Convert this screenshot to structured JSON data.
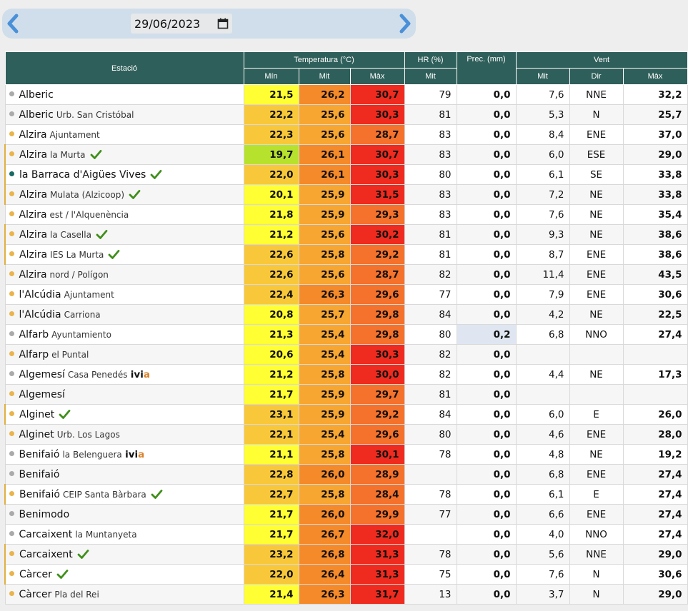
{
  "date": {
    "value": "29/06/2023"
  },
  "colors": {
    "header_bg": "#2f5f5a",
    "dot_orange": "#e9b44c",
    "dot_grey": "#aaaaaa",
    "dot_teal": "#1a6a64",
    "check": "#3f8f1a",
    "datebar": "#cfdeea",
    "arrow": "#4a90d9"
  },
  "icons": {
    "prev": "chevron-left-icon",
    "next": "chevron-right-icon",
    "calendar": "calendar-icon",
    "check": "checkmark-icon"
  },
  "header": {
    "station": "Estació",
    "temperature": "Temperatura (°C)",
    "hr": "HR (%)",
    "prec": "Prec. (mm)",
    "wind": "Vent",
    "min": "Mín",
    "mit": "Mit",
    "max": "Màx",
    "hr_mit": "Mit",
    "wind_mit": "Mit",
    "wind_dir": "Dir",
    "wind_max": "Màx"
  },
  "rows": [
    {
      "name": "Alberic",
      "sub": "",
      "ivia": false,
      "check": false,
      "dot": "grey",
      "tmin": "21,5",
      "tmit": "26,2",
      "tmax": "30,7",
      "hr": "79",
      "prec": "0,0",
      "vmit": "7,6",
      "dir": "NNE",
      "vmax": "32,2",
      "cmin": "#ffff33",
      "cmit": "#f58a2a",
      "cmax": "#ee2b1e"
    },
    {
      "name": "Alberic",
      "sub": "Urb. San Cristóbal",
      "ivia": false,
      "check": false,
      "dot": "grey",
      "tmin": "22,2",
      "tmit": "25,6",
      "tmax": "30,3",
      "hr": "81",
      "prec": "0,0",
      "vmit": "5,3",
      "dir": "N",
      "vmax": "25,7",
      "cmin": "#f8c83a",
      "cmit": "#f7a632",
      "cmax": "#ee2b1e"
    },
    {
      "name": "Alzira",
      "sub": "Ajuntament",
      "ivia": false,
      "check": false,
      "dot": "orange",
      "tmin": "22,3",
      "tmit": "25,6",
      "tmax": "28,7",
      "hr": "83",
      "prec": "0,0",
      "vmit": "8,4",
      "dir": "ENE",
      "vmax": "37,0",
      "cmin": "#f8c83a",
      "cmit": "#f7a632",
      "cmax": "#f4722c"
    },
    {
      "name": "Alzira",
      "sub": "la Murta",
      "ivia": false,
      "check": true,
      "dot": "orange",
      "tmin": "19,7",
      "tmit": "26,1",
      "tmax": "30,7",
      "hr": "83",
      "prec": "0,0",
      "vmit": "6,0",
      "dir": "ESE",
      "vmax": "29,0",
      "cmin": "#b6e22e",
      "cmit": "#f58a2a",
      "cmax": "#ee2b1e"
    },
    {
      "name": "la Barraca d'Aigües Vives",
      "sub": "",
      "ivia": false,
      "check": true,
      "dot": "teal",
      "tmin": "22,0",
      "tmit": "26,1",
      "tmax": "30,3",
      "hr": "80",
      "prec": "0,0",
      "vmit": "6,1",
      "dir": "SE",
      "vmax": "33,8",
      "cmin": "#f8c83a",
      "cmit": "#f58a2a",
      "cmax": "#ee2b1e"
    },
    {
      "name": "Alzira",
      "sub": "Mulata (Alzicoop)",
      "ivia": false,
      "check": true,
      "dot": "orange",
      "tmin": "20,1",
      "tmit": "25,9",
      "tmax": "31,5",
      "hr": "83",
      "prec": "0,0",
      "vmit": "7,2",
      "dir": "NE",
      "vmax": "33,8",
      "cmin": "#ffff33",
      "cmit": "#f7a632",
      "cmax": "#ee2b1e"
    },
    {
      "name": "Alzira",
      "sub": "est / l'Alquenència",
      "ivia": false,
      "check": false,
      "dot": "orange",
      "tmin": "21,8",
      "tmit": "25,9",
      "tmax": "29,3",
      "hr": "83",
      "prec": "0,0",
      "vmit": "7,6",
      "dir": "NE",
      "vmax": "35,4",
      "cmin": "#ffff33",
      "cmit": "#f7a632",
      "cmax": "#f4722c"
    },
    {
      "name": "Alzira",
      "sub": "la Casella",
      "ivia": false,
      "check": true,
      "dot": "orange",
      "tmin": "21,2",
      "tmit": "25,6",
      "tmax": "30,2",
      "hr": "81",
      "prec": "0,0",
      "vmit": "9,3",
      "dir": "NE",
      "vmax": "38,6",
      "cmin": "#ffff33",
      "cmit": "#f7a632",
      "cmax": "#ee2b1e"
    },
    {
      "name": "Alzira",
      "sub": "IES La Murta",
      "ivia": false,
      "check": true,
      "dot": "orange",
      "tmin": "22,6",
      "tmit": "25,8",
      "tmax": "29,2",
      "hr": "81",
      "prec": "0,0",
      "vmit": "8,7",
      "dir": "ENE",
      "vmax": "38,6",
      "cmin": "#f8c83a",
      "cmit": "#f7a632",
      "cmax": "#f4722c"
    },
    {
      "name": "Alzira",
      "sub": "nord / Polígon",
      "ivia": false,
      "check": false,
      "dot": "orange",
      "tmin": "22,6",
      "tmit": "25,6",
      "tmax": "28,7",
      "hr": "82",
      "prec": "0,0",
      "vmit": "11,4",
      "dir": "ENE",
      "vmax": "43,5",
      "cmin": "#f8c83a",
      "cmit": "#f7a632",
      "cmax": "#f4722c"
    },
    {
      "name": "l'Alcúdia",
      "sub": "Ajuntament",
      "ivia": false,
      "check": false,
      "dot": "orange",
      "tmin": "22,4",
      "tmit": "26,3",
      "tmax": "29,6",
      "hr": "77",
      "prec": "0,0",
      "vmit": "7,9",
      "dir": "ENE",
      "vmax": "30,6",
      "cmin": "#f8c83a",
      "cmit": "#f58a2a",
      "cmax": "#f4722c"
    },
    {
      "name": "l'Alcúdia",
      "sub": "Carriona",
      "ivia": false,
      "check": false,
      "dot": "orange",
      "tmin": "20,8",
      "tmit": "25,7",
      "tmax": "29,8",
      "hr": "84",
      "prec": "0,0",
      "vmit": "4,2",
      "dir": "NE",
      "vmax": "22,5",
      "cmin": "#ffff33",
      "cmit": "#f7a632",
      "cmax": "#f4722c"
    },
    {
      "name": "Alfarb",
      "sub": "Ayuntamiento",
      "ivia": false,
      "check": false,
      "dot": "grey",
      "tmin": "21,3",
      "tmit": "25,4",
      "tmax": "29,8",
      "hr": "80",
      "prec": "0,2",
      "vmit": "6,8",
      "dir": "NNO",
      "vmax": "27,4",
      "cmin": "#ffff33",
      "cmit": "#f7a632",
      "cmax": "#f4722c",
      "rain": true
    },
    {
      "name": "Alfarp",
      "sub": "el Puntal",
      "ivia": false,
      "check": false,
      "dot": "orange",
      "tmin": "20,6",
      "tmit": "25,4",
      "tmax": "30,3",
      "hr": "82",
      "prec": "0,0",
      "vmit": "",
      "dir": "",
      "vmax": "",
      "cmin": "#ffff33",
      "cmit": "#f7a632",
      "cmax": "#ee2b1e"
    },
    {
      "name": "Algemesí",
      "sub": "Casa Penedés",
      "ivia": true,
      "check": false,
      "dot": "grey",
      "tmin": "21,2",
      "tmit": "25,8",
      "tmax": "30,0",
      "hr": "82",
      "prec": "0,0",
      "vmit": "4,4",
      "dir": "NE",
      "vmax": "17,3",
      "cmin": "#ffff33",
      "cmit": "#f7a632",
      "cmax": "#ee2b1e"
    },
    {
      "name": "Algemesí",
      "sub": "",
      "ivia": false,
      "check": false,
      "dot": "orange",
      "tmin": "21,7",
      "tmit": "25,9",
      "tmax": "29,7",
      "hr": "81",
      "prec": "0,0",
      "vmit": "",
      "dir": "",
      "vmax": "",
      "cmin": "#ffff33",
      "cmit": "#f7a632",
      "cmax": "#f4722c"
    },
    {
      "name": "Alginet",
      "sub": "",
      "ivia": false,
      "check": true,
      "dot": "orange",
      "tmin": "23,1",
      "tmit": "25,9",
      "tmax": "29,2",
      "hr": "84",
      "prec": "0,0",
      "vmit": "6,0",
      "dir": "E",
      "vmax": "26,0",
      "cmin": "#f8c83a",
      "cmit": "#f7a632",
      "cmax": "#f4722c"
    },
    {
      "name": "Alginet",
      "sub": "Urb. Los Lagos",
      "ivia": false,
      "check": false,
      "dot": "orange",
      "tmin": "22,1",
      "tmit": "25,4",
      "tmax": "29,6",
      "hr": "80",
      "prec": "0,0",
      "vmit": "4,6",
      "dir": "ENE",
      "vmax": "28,0",
      "cmin": "#f8c83a",
      "cmit": "#f7a632",
      "cmax": "#f4722c"
    },
    {
      "name": "Benifaió",
      "sub": "la Belenguera",
      "ivia": true,
      "check": false,
      "dot": "grey",
      "tmin": "21,1",
      "tmit": "25,8",
      "tmax": "30,1",
      "hr": "78",
      "prec": "0,0",
      "vmit": "4,8",
      "dir": "NE",
      "vmax": "19,2",
      "cmin": "#ffff33",
      "cmit": "#f7a632",
      "cmax": "#ee2b1e"
    },
    {
      "name": "Benifaió",
      "sub": "",
      "ivia": false,
      "check": false,
      "dot": "grey",
      "tmin": "22,8",
      "tmit": "26,0",
      "tmax": "28,9",
      "hr": "",
      "prec": "0,0",
      "vmit": "6,8",
      "dir": "ENE",
      "vmax": "27,4",
      "cmin": "#f8c83a",
      "cmit": "#f58a2a",
      "cmax": "#f4722c"
    },
    {
      "name": "Benifaió",
      "sub": "CEIP Santa Bàrbara",
      "ivia": false,
      "check": true,
      "dot": "orange",
      "tmin": "22,7",
      "tmit": "25,8",
      "tmax": "28,4",
      "hr": "78",
      "prec": "0,0",
      "vmit": "6,1",
      "dir": "E",
      "vmax": "27,4",
      "cmin": "#f8c83a",
      "cmit": "#f7a632",
      "cmax": "#f4722c"
    },
    {
      "name": "Benimodo",
      "sub": "",
      "ivia": false,
      "check": false,
      "dot": "grey",
      "tmin": "21,7",
      "tmit": "26,0",
      "tmax": "29,9",
      "hr": "77",
      "prec": "0,0",
      "vmit": "6,6",
      "dir": "ENE",
      "vmax": "27,4",
      "cmin": "#ffff33",
      "cmit": "#f58a2a",
      "cmax": "#f4722c"
    },
    {
      "name": "Carcaixent",
      "sub": "la Muntanyeta",
      "ivia": false,
      "check": false,
      "dot": "grey",
      "tmin": "21,7",
      "tmit": "26,7",
      "tmax": "32,0",
      "hr": "",
      "prec": "0,0",
      "vmit": "4,0",
      "dir": "NNO",
      "vmax": "27,4",
      "cmin": "#ffff33",
      "cmit": "#f58a2a",
      "cmax": "#ee2b1e"
    },
    {
      "name": "Carcaixent",
      "sub": "",
      "ivia": false,
      "check": true,
      "dot": "orange",
      "tmin": "23,2",
      "tmit": "26,8",
      "tmax": "31,3",
      "hr": "78",
      "prec": "0,0",
      "vmit": "5,6",
      "dir": "NNE",
      "vmax": "29,0",
      "cmin": "#f8c83a",
      "cmit": "#f58a2a",
      "cmax": "#ee2b1e"
    },
    {
      "name": "Càrcer",
      "sub": "",
      "ivia": false,
      "check": true,
      "dot": "orange",
      "tmin": "22,0",
      "tmit": "26,4",
      "tmax": "31,3",
      "hr": "75",
      "prec": "0,0",
      "vmit": "7,6",
      "dir": "N",
      "vmax": "30,6",
      "cmin": "#f8c83a",
      "cmit": "#f58a2a",
      "cmax": "#ee2b1e"
    },
    {
      "name": "Càrcer",
      "sub": "Pla del Rei",
      "ivia": false,
      "check": false,
      "dot": "orange",
      "tmin": "21,4",
      "tmit": "26,3",
      "tmax": "31,7",
      "hr": "13",
      "prec": "0,0",
      "vmit": "3,7",
      "dir": "N",
      "vmax": "29,0",
      "cmin": "#ffff33",
      "cmit": "#f58a2a",
      "cmax": "#ee2b1e"
    }
  ],
  "ivia_label": {
    "a": "ivi",
    "b": "a"
  }
}
